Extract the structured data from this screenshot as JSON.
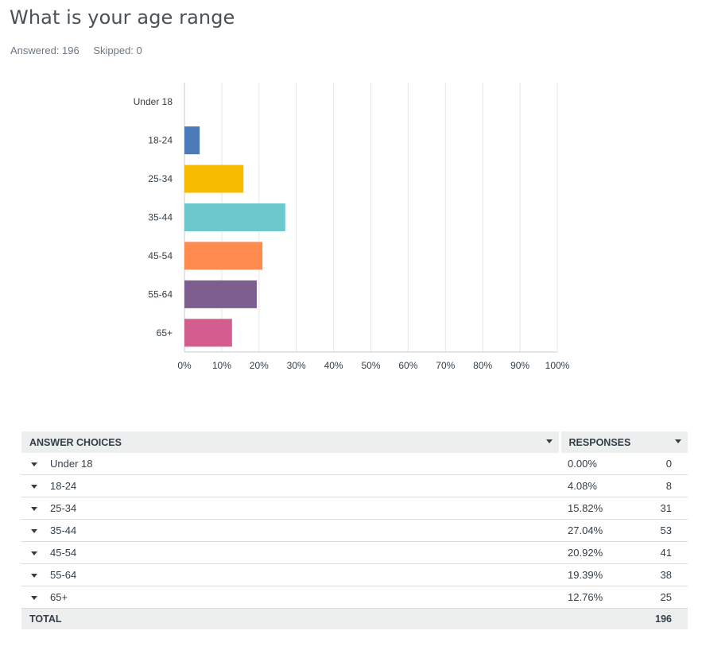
{
  "question": {
    "title": "What is your age range",
    "answered_label": "Answered: 196",
    "skipped_label": "Skipped: 0"
  },
  "chart_data": {
    "type": "bar",
    "orientation": "horizontal",
    "categories": [
      "Under 18",
      "18-24",
      "25-34",
      "35-44",
      "45-54",
      "55-64",
      "65+"
    ],
    "values": [
      0.0,
      4.08,
      15.82,
      27.04,
      20.92,
      19.39,
      12.76
    ],
    "colors": [
      "#4a7ab8",
      "#4a7ab8",
      "#f7bb00",
      "#6cc8cc",
      "#ff8b4f",
      "#7d5e8f",
      "#d35d8f"
    ],
    "xlim": [
      0,
      100
    ],
    "xticks": [
      "0%",
      "10%",
      "20%",
      "30%",
      "40%",
      "50%",
      "60%",
      "70%",
      "80%",
      "90%",
      "100%"
    ],
    "grid": true,
    "legend": "none"
  },
  "table": {
    "headers": {
      "choices": "ANSWER CHOICES",
      "responses": "RESPONSES"
    },
    "rows": [
      {
        "choice": "Under 18",
        "percent": "0.00%",
        "count": "0"
      },
      {
        "choice": "18-24",
        "percent": "4.08%",
        "count": "8"
      },
      {
        "choice": "25-34",
        "percent": "15.82%",
        "count": "31"
      },
      {
        "choice": "35-44",
        "percent": "27.04%",
        "count": "53"
      },
      {
        "choice": "45-54",
        "percent": "20.92%",
        "count": "41"
      },
      {
        "choice": "55-64",
        "percent": "19.39%",
        "count": "38"
      },
      {
        "choice": "65+",
        "percent": "12.76%",
        "count": "25"
      }
    ],
    "total": {
      "label": "TOTAL",
      "count": "196"
    }
  }
}
